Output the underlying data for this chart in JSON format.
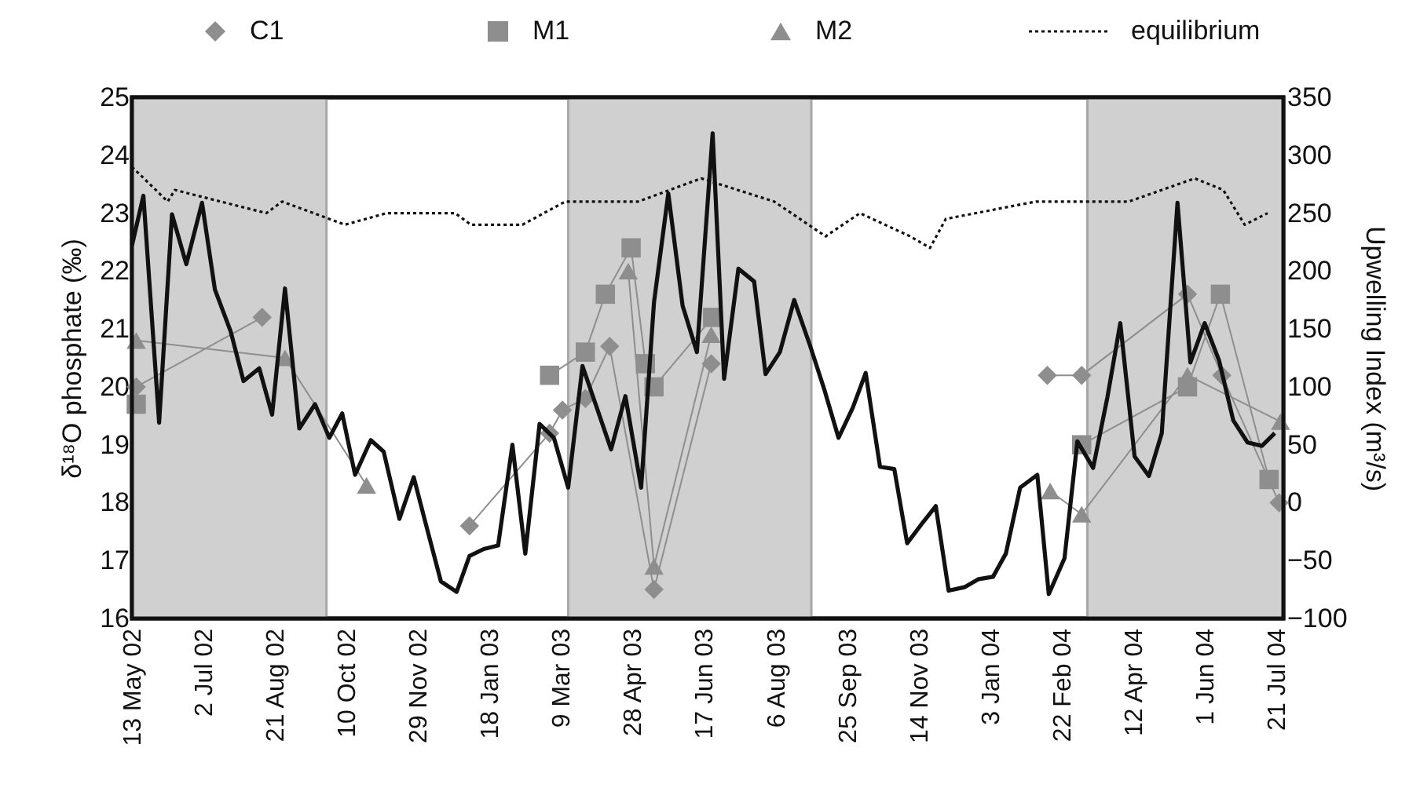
{
  "chart_data": {
    "type": "line",
    "ylabel": "δ¹⁸O phosphate (‰)",
    "y2label": "Upwelling Index (m³/s)",
    "xlim": [
      "2002-05-13",
      "2004-07-26"
    ],
    "xticks": [
      {
        "value": "2002-05-13",
        "label": "13 May 02"
      },
      {
        "value": "2002-07-02",
        "label": "2 Jul 02"
      },
      {
        "value": "2002-08-21",
        "label": "21 Aug 02"
      },
      {
        "value": "2002-10-10",
        "label": "10 Oct 02"
      },
      {
        "value": "2002-11-29",
        "label": "29 Nov 02"
      },
      {
        "value": "2003-01-18",
        "label": "18 Jan 03"
      },
      {
        "value": "2003-03-09",
        "label": "9 Mar 03"
      },
      {
        "value": "2003-04-28",
        "label": "28 Apr 03"
      },
      {
        "value": "2003-06-17",
        "label": "17 Jun 03"
      },
      {
        "value": "2003-08-06",
        "label": "6 Aug 03"
      },
      {
        "value": "2003-09-25",
        "label": "25 Sep 03"
      },
      {
        "value": "2003-11-14",
        "label": "14 Nov 03"
      },
      {
        "value": "2004-01-03",
        "label": "3 Jan 04"
      },
      {
        "value": "2004-02-22",
        "label": "22 Feb 04"
      },
      {
        "value": "2004-04-12",
        "label": "12 Apr 04"
      },
      {
        "value": "2004-06-01",
        "label": "1 Jun 04"
      },
      {
        "value": "2004-07-21",
        "label": "21 Jul 04"
      }
    ],
    "ylim": [
      16,
      25
    ],
    "yticks": [
      16,
      17,
      18,
      19,
      20,
      21,
      22,
      23,
      24,
      25
    ],
    "y2lim": [
      -100,
      350
    ],
    "y2ticks": [
      -100,
      -50,
      0,
      50,
      100,
      150,
      200,
      250,
      300,
      350
    ],
    "grid": false,
    "legend": "top",
    "bands": [
      {
        "axis": "x",
        "from": "2002-05-13",
        "to": "2002-09-26",
        "color": "#d0d0d0"
      },
      {
        "axis": "x",
        "from": "2003-03-14",
        "to": "2003-08-31",
        "color": "#d0d0d0"
      },
      {
        "axis": "x",
        "from": "2004-03-11",
        "to": "2004-07-26",
        "color": "#d0d0d0"
      }
    ],
    "series": [
      {
        "name": "C1",
        "marker": "diamond",
        "line_style": "solid",
        "color": "#8e8e8e",
        "x": [
          "2002-05-16",
          "2002-08-12",
          "2002-11-01",
          "2003-01-04",
          "2003-03-01",
          "2003-03-10",
          "2003-03-26",
          "2003-04-12",
          "2003-05-13",
          "2003-06-22",
          "2003-12-01",
          "2004-02-12",
          "2004-03-07",
          "2004-05-20",
          "2004-06-13",
          "2004-07-23"
        ],
        "values": [
          20.0,
          21.2,
          null,
          17.6,
          19.2,
          19.6,
          19.8,
          20.7,
          16.5,
          20.4,
          null,
          20.2,
          20.2,
          21.6,
          20.2,
          18.0
        ]
      },
      {
        "name": "M1",
        "marker": "square",
        "line_style": "solid",
        "color": "#8e8e8e",
        "x": [
          "2002-05-16",
          "2002-11-01",
          "2003-03-01",
          "2003-03-26",
          "2003-04-09",
          "2003-04-27",
          "2003-05-07",
          "2003-05-13",
          "2003-06-23",
          "2003-12-01",
          "2004-03-07",
          "2004-05-20",
          "2004-06-12",
          "2004-07-16"
        ],
        "values": [
          19.7,
          null,
          20.2,
          20.6,
          21.6,
          22.4,
          20.4,
          20.0,
          21.2,
          null,
          19.0,
          20.0,
          21.6,
          18.4
        ]
      },
      {
        "name": "M2",
        "marker": "triangle",
        "line_style": "solid",
        "color": "#8e8e8e",
        "x": [
          "2002-05-16",
          "2002-08-28",
          "2002-10-24",
          "2003-01-01",
          "2003-04-25",
          "2003-05-13",
          "2003-06-22",
          "2003-12-01",
          "2004-02-14",
          "2004-03-07",
          "2004-05-20",
          "2004-07-24"
        ],
        "values": [
          20.8,
          20.5,
          18.3,
          null,
          22.0,
          16.9,
          20.9,
          null,
          18.2,
          17.8,
          20.2,
          19.4
        ]
      },
      {
        "name": "equilibrium",
        "marker": "none",
        "line_style": "dotted",
        "color": "#111111",
        "x": [
          "2002-05-13",
          "2002-06-07",
          "2002-06-12",
          "2002-08-15",
          "2002-08-26",
          "2002-10-09",
          "2002-11-07",
          "2002-12-25",
          "2003-01-05",
          "2003-02-10",
          "2003-03-12",
          "2003-05-02",
          "2003-06-15",
          "2003-08-05",
          "2003-09-10",
          "2003-10-04",
          "2003-11-08",
          "2003-11-22",
          "2003-12-03",
          "2004-02-04",
          "2004-04-09",
          "2004-05-25",
          "2004-06-14",
          "2004-06-29",
          "2004-07-15"
        ],
        "values": [
          23.8,
          23.2,
          23.4,
          23.0,
          23.2,
          22.8,
          23.0,
          23.0,
          22.8,
          22.8,
          23.2,
          23.2,
          23.6,
          23.2,
          22.6,
          23.0,
          22.6,
          22.4,
          22.9,
          23.2,
          23.2,
          23.6,
          23.4,
          22.8,
          23.0
        ]
      },
      {
        "axis": "y2",
        "marker": "none",
        "line_style": "solid",
        "color": "#111111",
        "x": [
          "2002-05-13",
          "2002-05-21",
          "2002-06-01",
          "2002-06-10",
          "2002-06-20",
          "2002-07-01",
          "2002-07-10",
          "2002-07-21",
          "2002-07-30",
          "2002-08-10",
          "2002-08-19",
          "2002-08-28",
          "2002-09-07",
          "2002-09-18",
          "2002-09-28",
          "2002-10-07",
          "2002-10-16",
          "2002-10-27",
          "2002-11-05",
          "2002-11-16",
          "2002-11-26",
          "2002-12-05",
          "2002-12-15",
          "2002-12-26",
          "2003-01-04",
          "2003-01-14",
          "2003-01-24",
          "2003-02-03",
          "2003-02-12",
          "2003-02-22",
          "2003-03-04",
          "2003-03-14",
          "2003-03-24",
          "2003-04-03",
          "2003-04-13",
          "2003-04-23",
          "2003-05-04",
          "2003-05-13",
          "2003-05-23",
          "2003-06-02",
          "2003-06-12",
          "2003-06-23",
          "2003-07-01",
          "2003-07-11",
          "2003-07-22",
          "2003-07-30",
          "2003-08-09",
          "2003-08-19",
          "2003-08-30",
          "2003-09-09",
          "2003-09-19",
          "2003-09-29",
          "2003-10-08",
          "2003-10-18",
          "2003-10-28",
          "2003-11-06",
          "2003-11-17",
          "2003-11-26",
          "2003-12-05",
          "2003-12-16",
          "2003-12-26",
          "2004-01-05",
          "2004-01-14",
          "2004-01-24",
          "2004-02-05",
          "2004-02-13",
          "2004-02-24",
          "2004-03-04",
          "2004-03-15",
          "2004-03-25",
          "2004-04-03",
          "2004-04-13",
          "2004-04-23",
          "2004-05-02",
          "2004-05-13",
          "2004-05-22",
          "2004-06-01",
          "2004-06-11",
          "2004-06-21",
          "2004-07-01",
          "2004-07-11",
          "2004-07-20"
        ],
        "values": [
          222,
          265,
          69,
          249,
          206,
          259,
          184,
          148,
          105,
          116,
          76,
          185,
          64,
          85,
          56,
          77,
          24,
          54,
          44,
          -14,
          22,
          -21,
          -68,
          -77,
          -46,
          -40,
          -37,
          50,
          -44,
          68,
          56,
          13,
          118,
          82,
          46,
          92,
          13,
          173,
          267,
          170,
          130,
          319,
          107,
          202,
          191,
          111,
          130,
          175,
          136,
          98,
          56,
          82,
          112,
          31,
          29,
          -35,
          -17,
          -3,
          -76,
          -73,
          -66,
          -64,
          -44,
          13,
          24,
          -79,
          -48,
          53,
          30,
          91,
          155,
          40,
          23,
          60,
          259,
          121,
          155,
          123,
          71,
          52,
          49,
          60
        ]
      }
    ]
  }
}
